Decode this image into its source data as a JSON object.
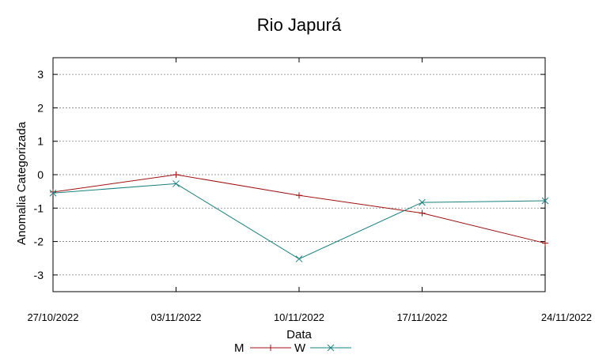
{
  "chart_data": {
    "type": "line",
    "title": "Rio Japurá",
    "xlabel": "Data",
    "ylabel": "Anomalia Categorizada",
    "categories": [
      "27/10/2022",
      "03/11/2022",
      "10/11/2022",
      "17/11/2022",
      "24/11/2022"
    ],
    "yticks": [
      3,
      2,
      1,
      0,
      -1,
      -2,
      -3
    ],
    "ylim": [
      -3.5,
      3.5
    ],
    "grid": true,
    "legend_position": "bottom-center",
    "series": [
      {
        "name": "M",
        "color": "#a01010",
        "marker": "plus",
        "values": [
          -0.52,
          0.0,
          -0.62,
          -1.15,
          -2.05
        ]
      },
      {
        "name": "W",
        "color": "#1a8080",
        "marker": "cross",
        "values": [
          -0.55,
          -0.27,
          -2.52,
          -0.83,
          -0.78
        ]
      }
    ]
  }
}
